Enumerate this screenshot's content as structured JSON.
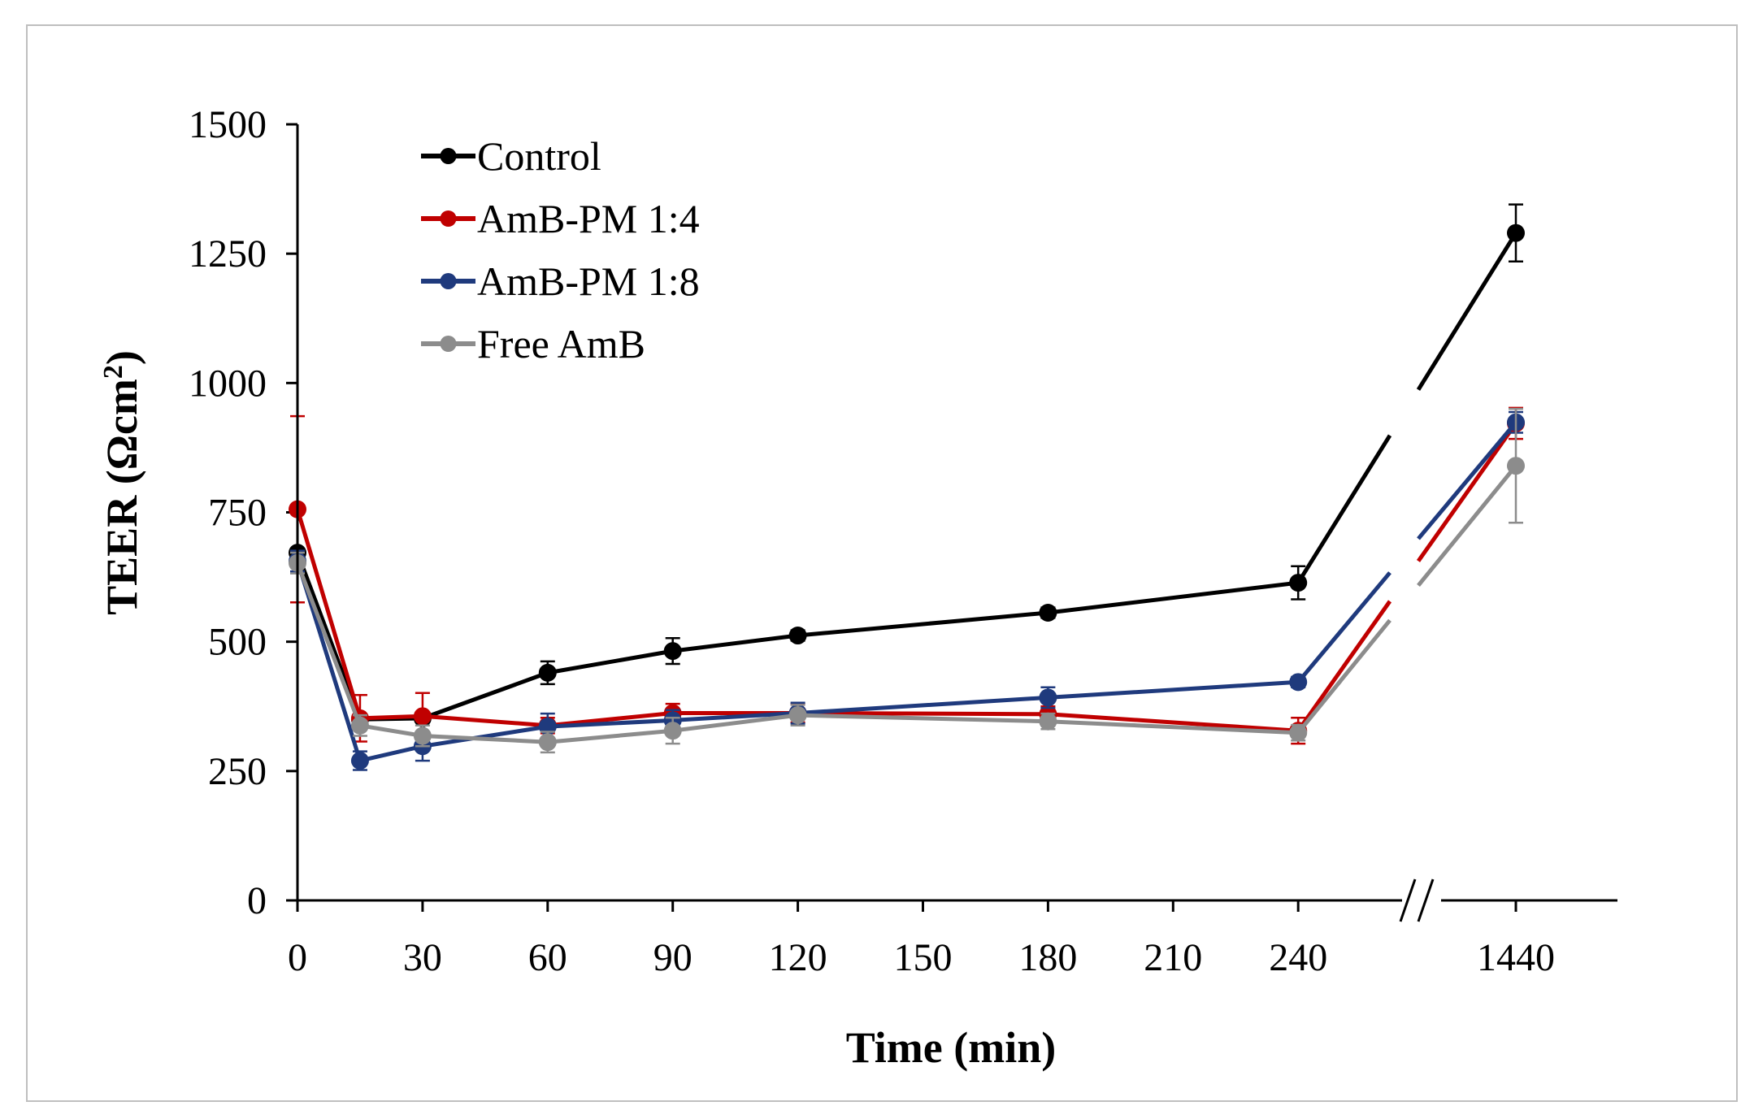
{
  "chart_data": {
    "type": "line",
    "title": "",
    "xlabel": "Time (min)",
    "ylabel_main": "TEER (Ωcm",
    "ylabel_sup": "2",
    "ylabel_close": ")",
    "ylim": [
      0,
      1500
    ],
    "y_ticks": [
      0,
      250,
      500,
      750,
      1000,
      1250,
      1500
    ],
    "x_ticks": [
      0,
      30,
      60,
      90,
      120,
      150,
      180,
      210,
      240,
      1440
    ],
    "x_break_after": 240,
    "legend_position": "top-left",
    "x": [
      0,
      15,
      30,
      60,
      90,
      120,
      180,
      240,
      1440
    ],
    "series": [
      {
        "name": "Control",
        "color": "#000000",
        "values": [
          672,
          350,
          352,
          440,
          482,
          512,
          556,
          614,
          1290
        ],
        "errors": [
          0,
          0,
          0,
          22,
          25,
          10,
          10,
          32,
          55
        ]
      },
      {
        "name": "AmB-PM 1:4",
        "color": "#c00000",
        "values": [
          756,
          352,
          356,
          338,
          362,
          362,
          360,
          328,
          922
        ],
        "errors": [
          180,
          45,
          45,
          15,
          18,
          18,
          15,
          25,
          30
        ]
      },
      {
        "name": "AmB-PM 1:8",
        "color": "#1f3a7d",
        "values": [
          656,
          270,
          298,
          336,
          348,
          362,
          392,
          422,
          924
        ],
        "errors": [
          20,
          18,
          28,
          25,
          20,
          20,
          20,
          10,
          20
        ]
      },
      {
        "name": "Free AmB",
        "color": "#8c8c8c",
        "values": [
          652,
          338,
          318,
          306,
          328,
          358,
          346,
          324,
          840
        ],
        "errors": [
          20,
          20,
          20,
          20,
          25,
          20,
          15,
          15,
          110
        ]
      }
    ]
  }
}
